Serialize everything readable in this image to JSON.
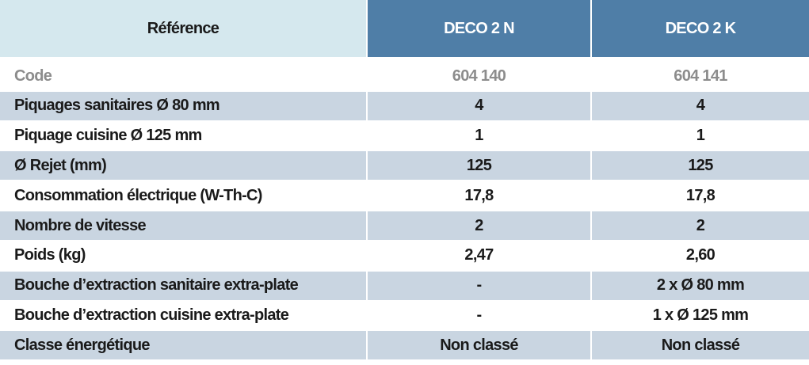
{
  "table": {
    "header": [
      "Référence",
      "DECO 2 N",
      "DECO 2 K"
    ],
    "rows": [
      [
        "Code",
        "604 140",
        "604 141"
      ],
      [
        "Piquages sanitaires Ø 80 mm",
        "4",
        "4"
      ],
      [
        "Piquage cuisine Ø 125 mm",
        "1",
        "1"
      ],
      [
        "Ø Rejet (mm)",
        "125",
        "125"
      ],
      [
        "Consommation électrique (W-Th-C)",
        "17,8",
        "17,8"
      ],
      [
        "Nombre de vitesse",
        "2",
        "2"
      ],
      [
        "Poids (kg)",
        "2,47",
        "2,60"
      ],
      [
        "Bouche d’extraction sanitaire extra-plate",
        "-",
        "2 x Ø 80 mm"
      ],
      [
        "Bouche d’extraction cuisine extra-plate",
        "-",
        "1 x Ø 125 mm"
      ],
      [
        "Classe énergétique",
        "Non classé",
        "Non classé"
      ]
    ]
  }
}
